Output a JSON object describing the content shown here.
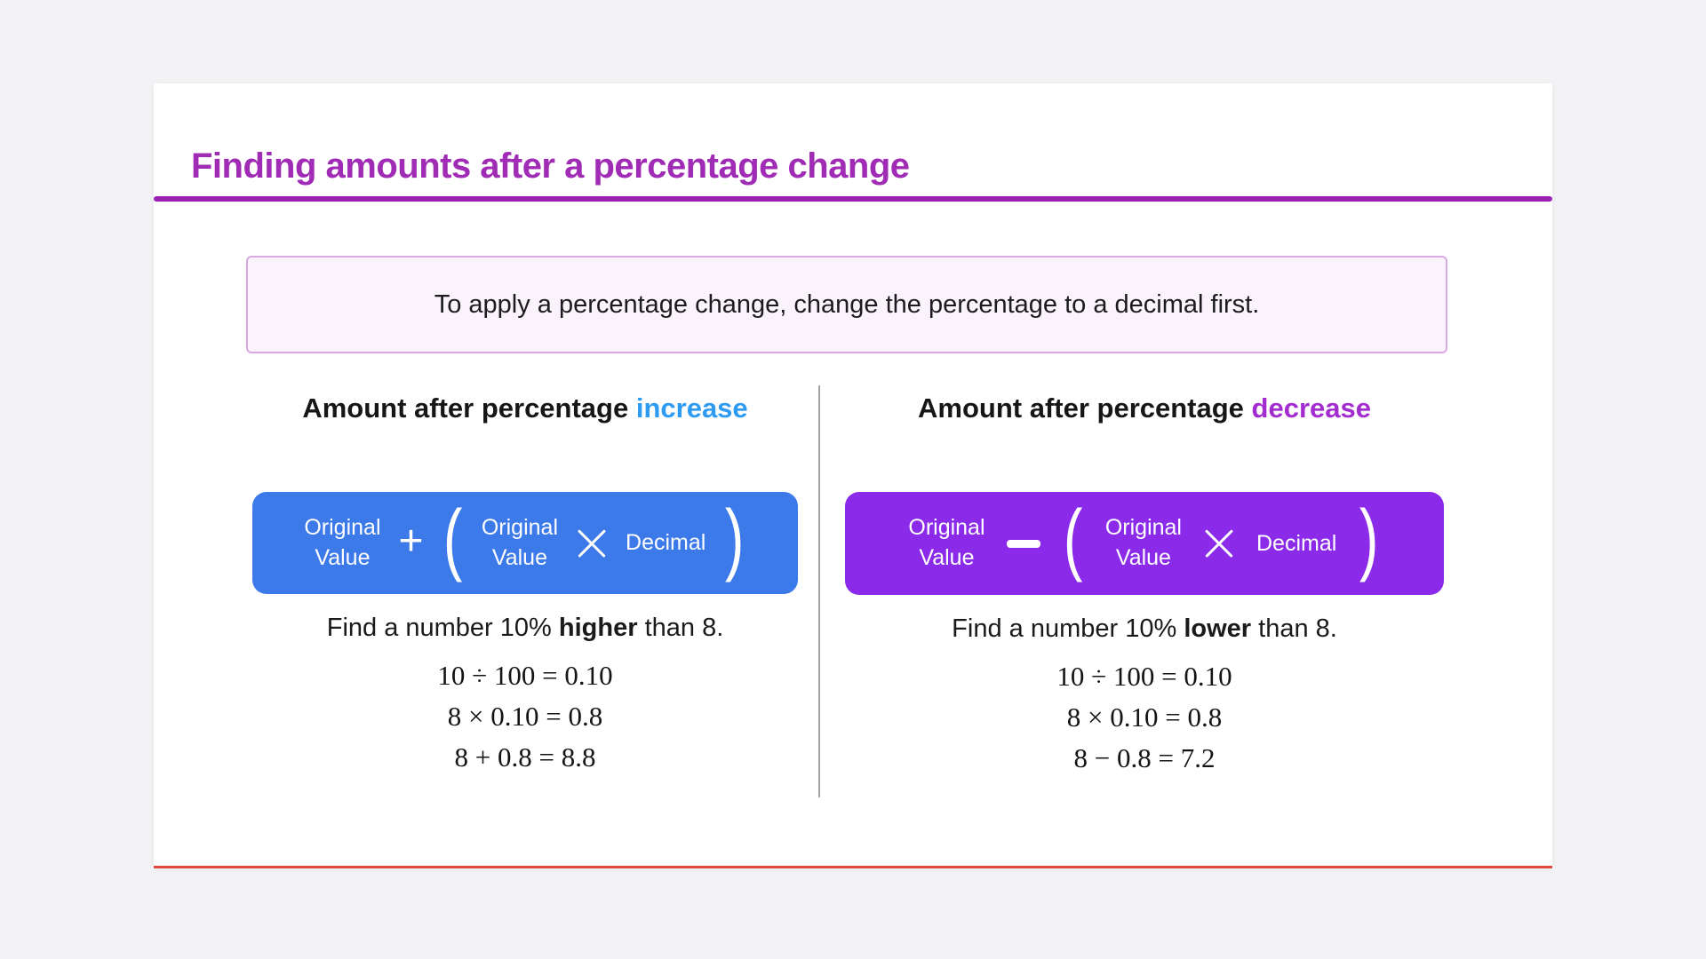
{
  "window": {
    "background": "#F3F3F5",
    "card_background": "#FFFFFF",
    "bottom_accent_color": "#DE4B3B",
    "separator_color": "#A5A5A8"
  },
  "header": {
    "title": "Finding amounts after a percentage change",
    "title_color": "#A02CB5",
    "divider_color": "#9B1EB2"
  },
  "callout": {
    "text": "To apply a percentage change, change the percentage to a decimal first.",
    "background": "#FAF3FB",
    "border_color": "#D9A9E1"
  },
  "columns": {
    "increase": {
      "heading_prefix": "Amount after percentage ",
      "heading_keyword": "increase",
      "keyword_color": "#2E9BF3",
      "formula": {
        "background": "#3C79E9",
        "term1_line1": "Original",
        "term1_line2": "Value",
        "operator": "+",
        "open_paren": "(",
        "term2_line1": "Original",
        "term2_line2": "Value",
        "times": "×",
        "term3": "Decimal",
        "close_paren": ")"
      },
      "example_prefix": "Find a number 10% ",
      "example_keyword": "higher",
      "example_suffix": " than 8.",
      "steps": [
        "10 ÷ 100 = 0.10",
        "8 × 0.10 = 0.8",
        "8 + 0.8 = 8.8"
      ]
    },
    "decrease": {
      "heading_prefix": "Amount after percentage ",
      "heading_keyword": "decrease",
      "keyword_color": "#A32CD0",
      "formula": {
        "background": "#8B2BE9",
        "term1_line1": "Original",
        "term1_line2": "Value",
        "operator": "−",
        "open_paren": "(",
        "term2_line1": "Original",
        "term2_line2": "Value",
        "times": "×",
        "term3": "Decimal",
        "close_paren": ")"
      },
      "example_prefix": "Find a number 10% ",
      "example_keyword": "lower",
      "example_suffix": " than 8.",
      "steps": [
        "10 ÷ 100 = 0.10",
        "8 × 0.10 = 0.8",
        "8 − 0.8 = 7.2"
      ]
    }
  }
}
